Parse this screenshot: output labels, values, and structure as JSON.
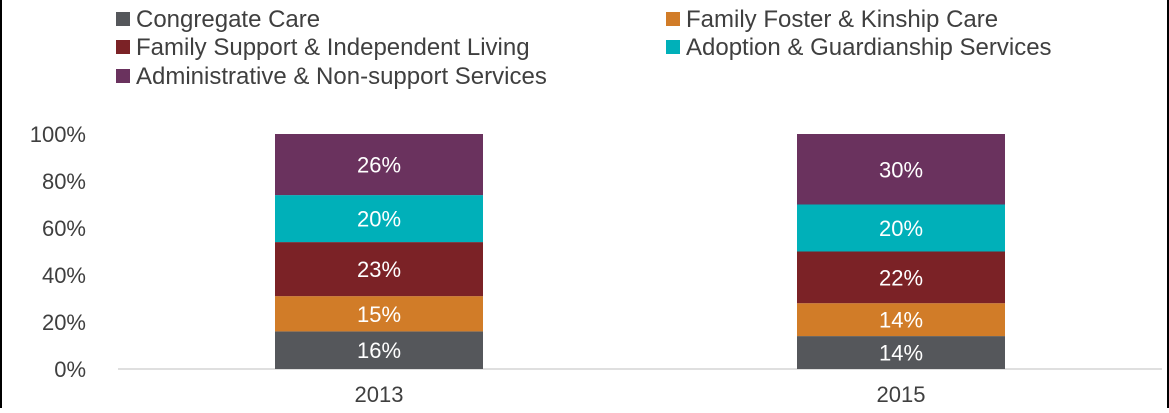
{
  "chart_data": {
    "type": "bar",
    "stacked": true,
    "categories": [
      "2013",
      "2015"
    ],
    "series": [
      {
        "name": "Congregate Care",
        "color": "#55575b",
        "values": [
          16,
          14
        ],
        "labels": [
          "16%",
          "14%"
        ]
      },
      {
        "name": "Family Foster & Kinship Care",
        "color": "#d17c28",
        "values": [
          15,
          14
        ],
        "labels": [
          "15%",
          "14%"
        ]
      },
      {
        "name": "Family Support & Independent Living",
        "color": "#7b2226",
        "values": [
          23,
          22
        ],
        "labels": [
          "23%",
          "22%"
        ]
      },
      {
        "name": "Adoption & Guardianship Services",
        "color": "#00b0b9",
        "values": [
          20,
          20
        ],
        "labels": [
          "20%",
          "20%"
        ]
      },
      {
        "name": "Administrative & Non-support Services",
        "color": "#6a325e",
        "values": [
          26,
          30
        ],
        "labels": [
          "26%",
          "30%"
        ]
      }
    ],
    "ylim": [
      0,
      100
    ],
    "yticks": [
      "0%",
      "20%",
      "40%",
      "60%",
      "80%",
      "100%"
    ],
    "legend_position": "top",
    "grid": false
  }
}
